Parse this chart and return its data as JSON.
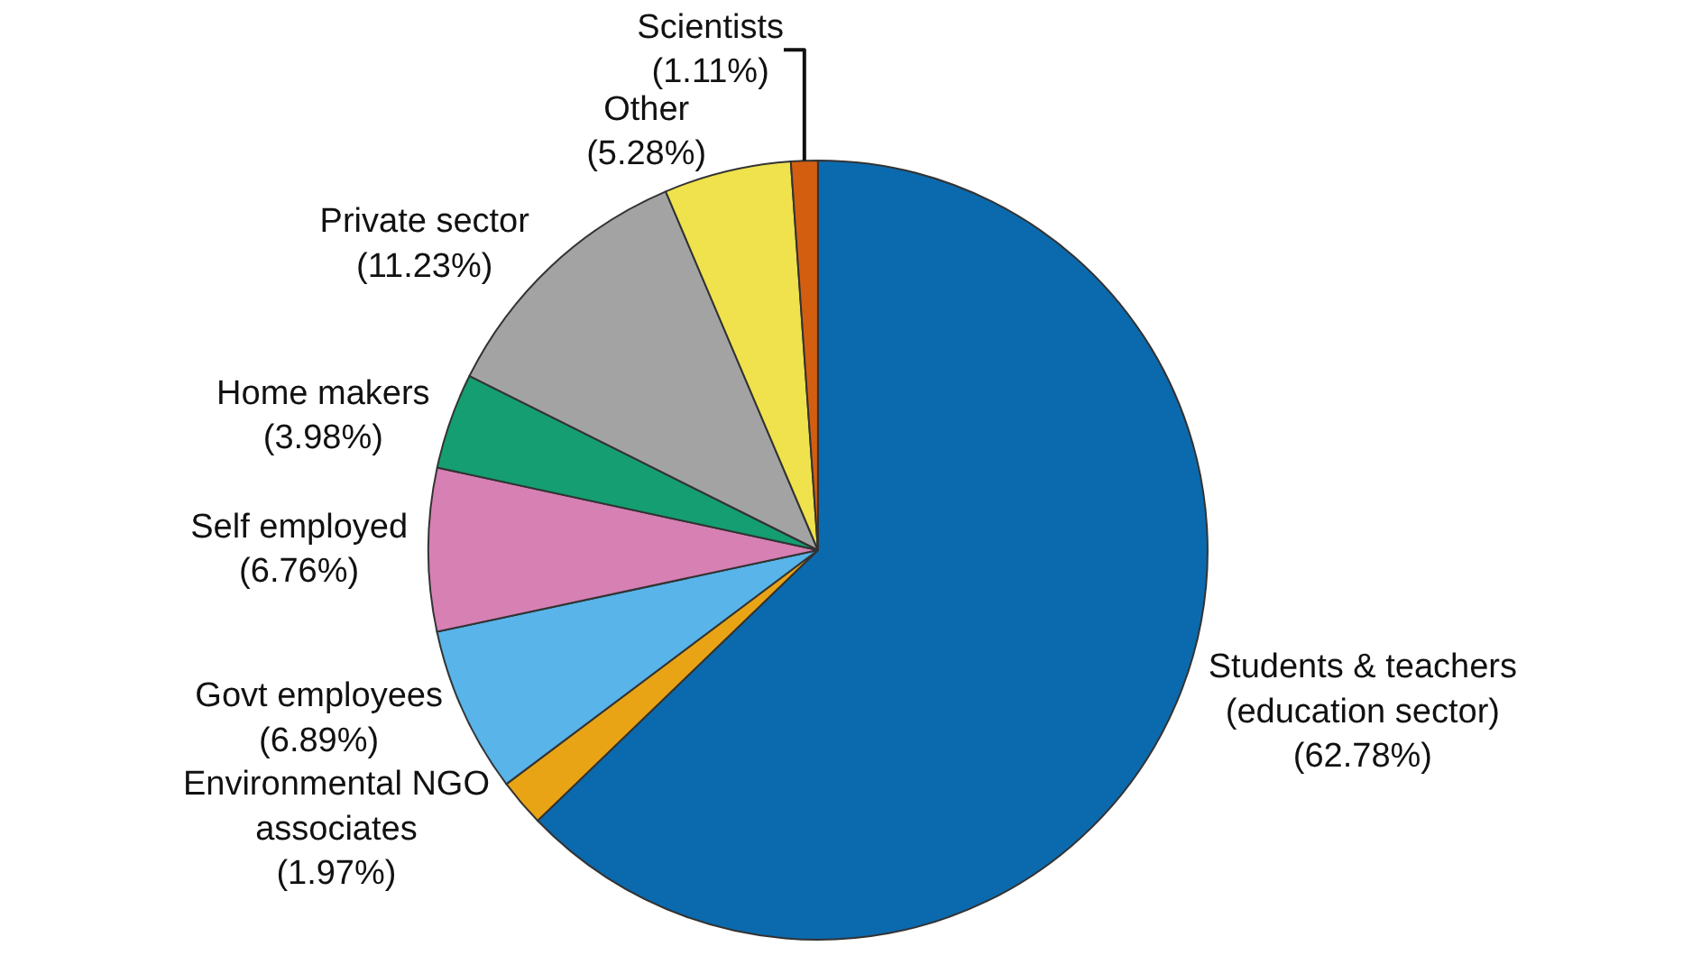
{
  "chart_data": {
    "type": "pie",
    "categories": [
      "Students & teachers (education sector)",
      "Environmental NGO associates",
      "Govt employees",
      "Self employed",
      "Home makers",
      "Private sector",
      "Other",
      "Scientists"
    ],
    "values": [
      62.78,
      1.97,
      6.89,
      6.76,
      3.98,
      11.23,
      5.28,
      1.11
    ],
    "value_labels": [
      "(62.78%)",
      "(1.97%)",
      "(6.89%)",
      "(6.76%)",
      "(3.98%)",
      "(11.23%)",
      "(5.28%)",
      "(1.11%)"
    ],
    "colors": [
      "#0b6aae",
      "#e9a416",
      "#58b4e9",
      "#d680b4",
      "#149e72",
      "#a3a3a3",
      "#efe24c",
      "#d45e10"
    ],
    "legend": false
  }
}
